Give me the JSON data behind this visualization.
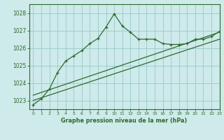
{
  "title": "Graphe pression niveau de la mer (hPa)",
  "bg_color": "#ceeaea",
  "grid_color": "#9ecece",
  "line_color": "#2d6a2d",
  "xlim": [
    -0.5,
    23
  ],
  "ylim": [
    1022.5,
    1028.5
  ],
  "yticks": [
    1023,
    1024,
    1025,
    1026,
    1027,
    1028
  ],
  "xticks": [
    0,
    1,
    2,
    3,
    4,
    5,
    6,
    7,
    8,
    9,
    10,
    11,
    12,
    13,
    14,
    15,
    16,
    17,
    18,
    19,
    20,
    21,
    22,
    23
  ],
  "line1_x": [
    0,
    23
  ],
  "line1_y": [
    1023.0,
    1026.5
  ],
  "line2_x": [
    0,
    23
  ],
  "line2_y": [
    1023.3,
    1026.9
  ],
  "main_x": [
    0,
    1,
    2,
    3,
    4,
    5,
    6,
    7,
    8,
    9,
    10,
    11,
    12,
    13,
    14,
    15,
    16,
    17,
    18,
    19,
    20,
    21,
    22,
    23
  ],
  "main_y": [
    1022.75,
    1023.1,
    1023.65,
    1024.6,
    1025.25,
    1025.55,
    1025.85,
    1026.25,
    1026.55,
    1027.2,
    1027.95,
    1027.25,
    1026.9,
    1026.5,
    1026.5,
    1026.5,
    1026.25,
    1026.2,
    1026.2,
    1026.25,
    1026.5,
    1026.5,
    1026.65,
    1026.95
  ]
}
